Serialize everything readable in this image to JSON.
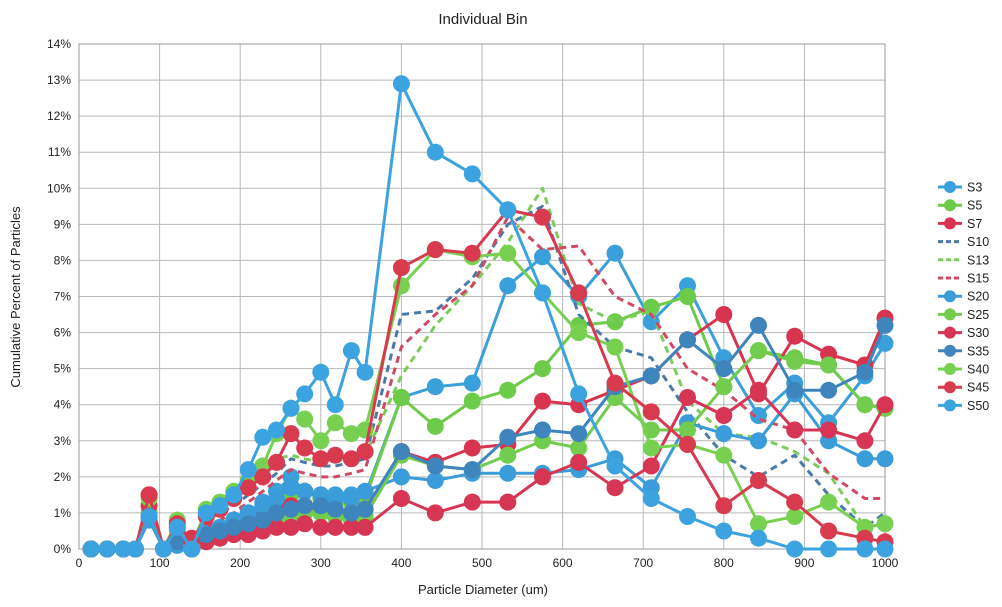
{
  "chart_data": {
    "type": "line",
    "title": "Individual Bin",
    "xlabel": "Particle Diameter (um)",
    "ylabel": "Cumulative Percent of Particles",
    "xlim": [
      0,
      1000
    ],
    "ylim": [
      0,
      14
    ],
    "x_ticks": [
      0,
      100,
      200,
      300,
      400,
      500,
      600,
      700,
      800,
      900,
      1000
    ],
    "y_ticks": [
      0,
      1,
      2,
      3,
      4,
      5,
      6,
      7,
      8,
      9,
      10,
      11,
      12,
      13,
      14
    ],
    "y_tick_format": "%",
    "grid": true,
    "legend_position": "right",
    "series": [
      {
        "name": "S3",
        "color": "#3aa0db",
        "style": "solid",
        "marker": true,
        "x": [
          15,
          35,
          55,
          70,
          87,
          105,
          122,
          140,
          158,
          175,
          192,
          210,
          228,
          245,
          263,
          280,
          300,
          318,
          338,
          355,
          400,
          442,
          488,
          532,
          575,
          620,
          665,
          710,
          755,
          800,
          843,
          888,
          930,
          975,
          1000
        ],
        "y": [
          0,
          0,
          0,
          0,
          0.9,
          0,
          0.2,
          0,
          0.5,
          0.6,
          0.8,
          1.0,
          1.3,
          1.6,
          2.0,
          1.6,
          1.5,
          1.5,
          1.5,
          1.5,
          4.2,
          4.5,
          4.6,
          7.3,
          8.1,
          7.0,
          8.2,
          6.3,
          7.3,
          5.3,
          3.7,
          4.6,
          3.5,
          4.8,
          5.7
        ]
      },
      {
        "name": "S5",
        "color": "#6dcb4a",
        "style": "solid",
        "marker": true,
        "x": [
          15,
          35,
          55,
          70,
          87,
          105,
          122,
          140,
          158,
          175,
          192,
          210,
          228,
          245,
          263,
          280,
          300,
          318,
          338,
          355,
          400,
          442,
          488,
          532,
          575,
          620,
          665,
          710,
          755,
          800,
          843,
          888,
          930,
          975,
          1000
        ],
        "y": [
          0,
          0,
          0,
          0,
          1.0,
          0,
          0.5,
          0.1,
          0.4,
          0.5,
          0.6,
          0.8,
          1.0,
          1.2,
          1.5,
          1.6,
          1.4,
          1.3,
          1.3,
          1.4,
          4.2,
          3.4,
          4.1,
          4.4,
          5.0,
          6.2,
          6.3,
          6.7,
          7.0,
          4.5,
          5.5,
          5.3,
          5.1,
          4.0,
          3.9
        ]
      },
      {
        "name": "S7",
        "color": "#d9344f",
        "style": "solid",
        "marker": true,
        "x": [
          15,
          35,
          55,
          70,
          87,
          105,
          122,
          140,
          158,
          175,
          192,
          210,
          228,
          245,
          263,
          280,
          300,
          318,
          338,
          355,
          400,
          442,
          488,
          532,
          575,
          620,
          665,
          710,
          755,
          800,
          843,
          888,
          930,
          975,
          1000
        ],
        "y": [
          0,
          0,
          0,
          0,
          1.5,
          0,
          0.2,
          0.3,
          0.4,
          0.5,
          0.7,
          0.8,
          1.0,
          1.1,
          1.2,
          1.2,
          1.1,
          1.0,
          1.0,
          1.1,
          2.7,
          2.4,
          2.8,
          2.9,
          4.1,
          4.0,
          4.4,
          4.8,
          5.8,
          6.5,
          4.3,
          5.9,
          5.4,
          5.1,
          6.4
        ]
      },
      {
        "name": "S10",
        "color": "#4b7aa8",
        "style": "dashed",
        "marker": false,
        "x": [
          15,
          35,
          55,
          70,
          87,
          105,
          122,
          140,
          158,
          175,
          192,
          210,
          228,
          245,
          263,
          280,
          300,
          318,
          338,
          355,
          400,
          442,
          488,
          532,
          575,
          620,
          665,
          710,
          755,
          800,
          843,
          888,
          930,
          975,
          1000
        ],
        "y": [
          0,
          0,
          0,
          0,
          1.2,
          0,
          0.4,
          0.2,
          0.8,
          1.0,
          1.2,
          1.5,
          1.8,
          2.1,
          2.5,
          2.4,
          2.3,
          2.3,
          2.4,
          2.5,
          6.5,
          6.6,
          7.5,
          9.0,
          9.5,
          6.5,
          5.6,
          5.3,
          3.8,
          2.6,
          2.0,
          2.6,
          1.5,
          0.6,
          1.0
        ]
      },
      {
        "name": "S13",
        "color": "#7dcb5c",
        "style": "dashed",
        "marker": false,
        "x": [
          15,
          35,
          55,
          70,
          87,
          105,
          122,
          140,
          158,
          175,
          192,
          210,
          228,
          245,
          263,
          280,
          300,
          318,
          338,
          355,
          400,
          442,
          488,
          532,
          575,
          620,
          665,
          710,
          755,
          800,
          843,
          888,
          930,
          975,
          1000
        ],
        "y": [
          0,
          0,
          0,
          0,
          1.1,
          0,
          0.5,
          0.1,
          0.9,
          1.2,
          1.6,
          1.9,
          2.1,
          2.5,
          2.6,
          2.5,
          2.4,
          2.6,
          2.5,
          2.6,
          4.8,
          6.2,
          7.3,
          8.5,
          10.0,
          6.8,
          6.3,
          6.6,
          4.1,
          3.2,
          3.1,
          2.7,
          2.1,
          0.6,
          0.7
        ]
      },
      {
        "name": "S15",
        "color": "#d04a63",
        "style": "dashed",
        "marker": false,
        "x": [
          15,
          35,
          55,
          70,
          87,
          105,
          122,
          140,
          158,
          175,
          192,
          210,
          228,
          245,
          263,
          280,
          300,
          318,
          338,
          355,
          400,
          442,
          488,
          532,
          575,
          620,
          665,
          710,
          755,
          800,
          843,
          888,
          930,
          975,
          1000
        ],
        "y": [
          0,
          0,
          0,
          0,
          1.4,
          0,
          0.3,
          0.2,
          0.6,
          0.8,
          1.0,
          1.3,
          1.6,
          1.9,
          2.2,
          2.1,
          2.0,
          2.0,
          2.1,
          2.2,
          5.6,
          6.5,
          7.3,
          9.2,
          8.3,
          8.4,
          7.0,
          6.5,
          5.0,
          4.4,
          3.6,
          3.3,
          2.1,
          1.4,
          1.4
        ]
      },
      {
        "name": "S20",
        "color": "#3a9cd8",
        "style": "solid",
        "marker": true,
        "x": [
          15,
          35,
          55,
          70,
          87,
          105,
          122,
          140,
          158,
          175,
          192,
          210,
          228,
          245,
          263,
          280,
          300,
          318,
          338,
          355,
          400,
          442,
          488,
          532,
          575,
          620,
          665,
          710,
          755,
          800,
          843,
          888,
          930,
          975,
          1000
        ],
        "y": [
          0,
          0,
          0,
          0,
          0.8,
          0,
          0.1,
          0,
          0.4,
          0.6,
          0.8,
          1.0,
          1.2,
          1.4,
          1.7,
          1.6,
          1.5,
          1.4,
          1.4,
          1.6,
          2.0,
          1.9,
          2.1,
          2.1,
          2.1,
          2.2,
          2.5,
          1.7,
          3.5,
          3.2,
          3.0,
          4.3,
          3.0,
          2.5,
          2.5
        ]
      },
      {
        "name": "S25",
        "color": "#72cc4e",
        "style": "solid",
        "marker": true,
        "x": [
          15,
          35,
          55,
          70,
          87,
          105,
          122,
          140,
          158,
          175,
          192,
          210,
          228,
          245,
          263,
          280,
          300,
          318,
          338,
          355,
          400,
          442,
          488,
          532,
          575,
          620,
          665,
          710,
          755,
          800,
          843,
          888,
          930,
          975,
          1000
        ],
        "y": [
          0,
          0,
          0,
          0,
          1.0,
          0,
          0.6,
          0,
          0.3,
          0.4,
          0.5,
          0.6,
          0.7,
          0.8,
          0.9,
          1.0,
          1.0,
          0.9,
          0.8,
          0.9,
          2.6,
          2.3,
          2.2,
          2.6,
          3.0,
          2.8,
          4.2,
          3.3,
          3.3,
          4.5,
          5.5,
          5.2,
          5.1,
          4.0,
          3.9
        ]
      },
      {
        "name": "S30",
        "color": "#d63554",
        "style": "solid",
        "marker": true,
        "x": [
          15,
          35,
          55,
          70,
          87,
          105,
          122,
          140,
          158,
          175,
          192,
          210,
          228,
          245,
          263,
          280,
          300,
          318,
          338,
          355,
          400,
          442,
          488,
          532,
          575,
          620,
          665,
          710,
          755,
          800,
          843,
          888,
          930,
          975,
          1000
        ],
        "y": [
          0,
          0,
          0,
          0,
          1.2,
          0,
          0.3,
          0.2,
          0.2,
          0.3,
          0.4,
          0.4,
          0.5,
          0.6,
          0.6,
          0.7,
          0.6,
          0.6,
          0.6,
          0.6,
          1.4,
          1.0,
          1.3,
          1.3,
          2.0,
          2.4,
          1.7,
          2.3,
          4.2,
          3.7,
          4.4,
          3.3,
          3.3,
          3.0,
          4.0
        ]
      },
      {
        "name": "S35",
        "color": "#3f85bd",
        "style": "solid",
        "marker": true,
        "x": [
          15,
          35,
          55,
          70,
          87,
          105,
          122,
          140,
          158,
          175,
          192,
          210,
          228,
          245,
          263,
          280,
          300,
          318,
          338,
          355,
          400,
          442,
          488,
          532,
          575,
          620,
          665,
          710,
          755,
          800,
          843,
          888,
          930,
          975,
          1000
        ],
        "y": [
          0,
          0,
          0,
          0,
          0.9,
          0,
          0.2,
          0,
          0.4,
          0.5,
          0.6,
          0.7,
          0.8,
          1.0,
          1.1,
          1.2,
          1.2,
          1.1,
          1.0,
          1.1,
          2.7,
          2.3,
          2.2,
          3.1,
          3.3,
          3.2,
          4.5,
          4.8,
          5.8,
          5.0,
          6.2,
          4.4,
          4.4,
          4.9,
          6.2
        ]
      },
      {
        "name": "S40",
        "color": "#78d050",
        "style": "solid",
        "marker": true,
        "x": [
          15,
          35,
          55,
          70,
          87,
          105,
          122,
          140,
          158,
          175,
          192,
          210,
          228,
          245,
          263,
          280,
          300,
          318,
          338,
          355,
          400,
          442,
          488,
          532,
          575,
          620,
          665,
          710,
          755,
          800,
          843,
          888,
          930,
          975,
          1000
        ],
        "y": [
          0,
          0,
          0,
          0,
          1.4,
          0,
          0.8,
          0.1,
          1.1,
          1.3,
          1.6,
          1.9,
          2.3,
          3.2,
          3.9,
          3.6,
          3.0,
          3.5,
          3.2,
          3.3,
          7.3,
          8.3,
          8.1,
          8.2,
          7.1,
          6.0,
          5.6,
          2.8,
          2.9,
          2.6,
          0.7,
          0.9,
          1.3,
          0.6,
          0.7
        ]
      },
      {
        "name": "S45",
        "color": "#d83a4e",
        "style": "solid",
        "marker": true,
        "x": [
          15,
          35,
          55,
          70,
          87,
          105,
          122,
          140,
          158,
          175,
          192,
          210,
          228,
          245,
          263,
          280,
          300,
          318,
          338,
          355,
          400,
          442,
          488,
          532,
          575,
          620,
          665,
          710,
          755,
          800,
          843,
          888,
          930,
          975,
          1000
        ],
        "y": [
          0,
          0,
          0,
          0,
          1.5,
          0,
          0.7,
          0.2,
          0.9,
          1.1,
          1.4,
          1.7,
          2.0,
          2.4,
          3.2,
          2.8,
          2.5,
          2.6,
          2.5,
          2.7,
          7.8,
          8.3,
          8.2,
          9.4,
          9.2,
          7.1,
          4.6,
          3.8,
          2.9,
          1.2,
          1.9,
          1.3,
          0.5,
          0.3,
          0.2
        ]
      },
      {
        "name": "S50",
        "color": "#3aa3e0",
        "style": "solid",
        "marker": true,
        "x": [
          15,
          35,
          55,
          70,
          87,
          105,
          122,
          140,
          158,
          175,
          192,
          210,
          228,
          245,
          263,
          280,
          300,
          318,
          338,
          355,
          400,
          442,
          488,
          532,
          575,
          620,
          665,
          710,
          755,
          800,
          843,
          888,
          930,
          975,
          1000
        ],
        "y": [
          0,
          0,
          0,
          0,
          0.9,
          0,
          0.6,
          0,
          1.0,
          1.2,
          1.5,
          2.2,
          3.1,
          3.3,
          3.9,
          4.3,
          4.9,
          4.0,
          5.5,
          4.9,
          12.9,
          11.0,
          10.4,
          9.4,
          7.1,
          4.3,
          2.3,
          1.4,
          0.9,
          0.5,
          0.3,
          0.0,
          0.0,
          0.0,
          0.0
        ]
      }
    ]
  }
}
